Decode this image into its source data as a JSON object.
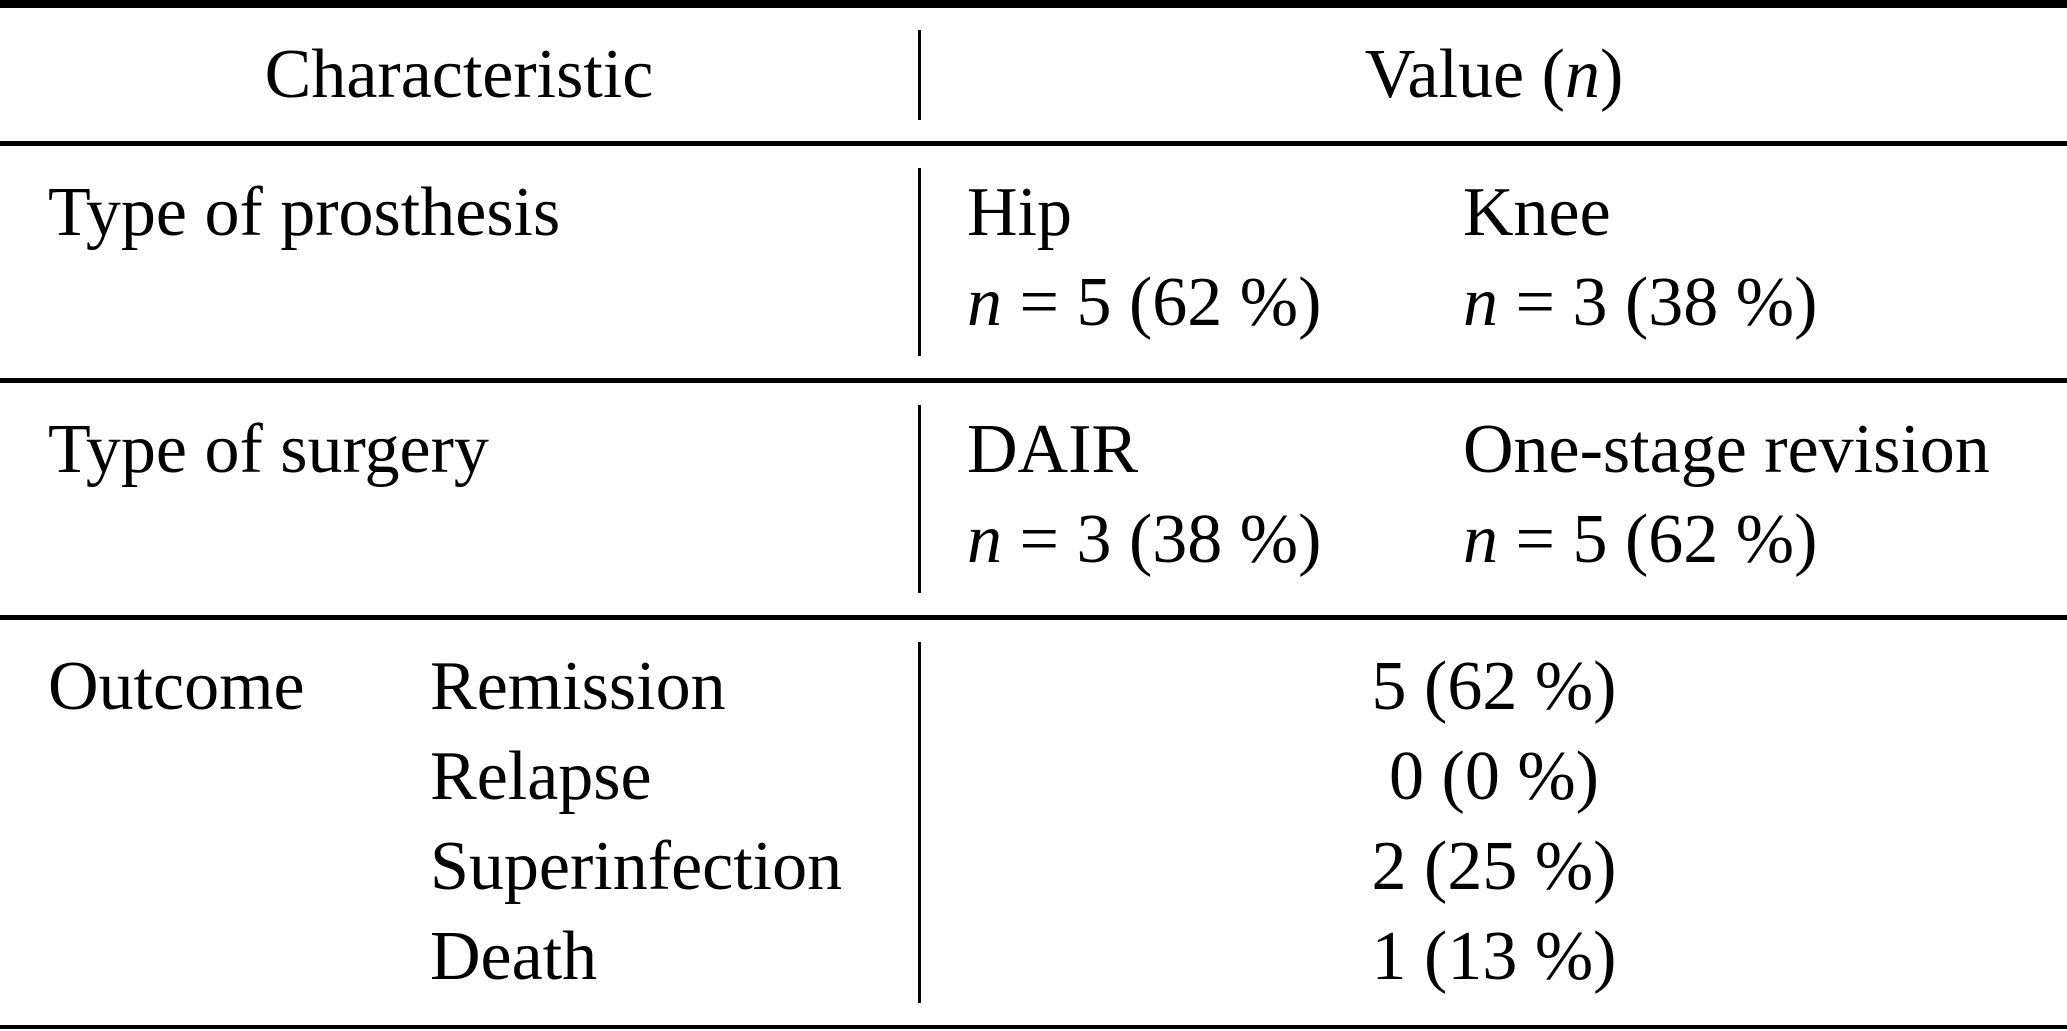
{
  "symbols": {
    "n": "n"
  },
  "table": {
    "header": {
      "characteristic": "Characteristic",
      "value_pre": "Value (",
      "value_post": ")"
    },
    "rows": [
      {
        "label": "Type of prosthesis",
        "options": [
          {
            "name": "Hip",
            "count": " = 5 (62 %)"
          },
          {
            "name": "Knee",
            "count": " = 3 (38 %)"
          }
        ]
      },
      {
        "label": "Type of surgery",
        "options": [
          {
            "name": "DAIR",
            "count": " = 3 (38 %)"
          },
          {
            "name": "One-stage revision",
            "count": " = 5 (62 %)"
          }
        ]
      },
      {
        "label": "Outcome",
        "items": [
          {
            "name": "Remission",
            "value": "5 (62 %)"
          },
          {
            "name": "Relapse",
            "value": "0 (0 %)"
          },
          {
            "name": "Superinfection",
            "value": "2 (25 %)"
          },
          {
            "name": "Death",
            "value": "1 (13 %)"
          }
        ]
      }
    ]
  }
}
